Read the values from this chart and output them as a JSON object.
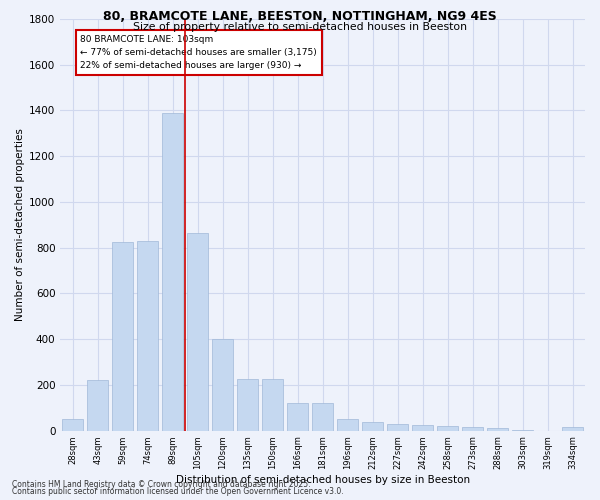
{
  "title1": "80, BRAMCOTE LANE, BEESTON, NOTTINGHAM, NG9 4ES",
  "title2": "Size of property relative to semi-detached houses in Beeston",
  "xlabel": "Distribution of semi-detached houses by size in Beeston",
  "ylabel": "Number of semi-detached properties",
  "bar_labels": [
    "28sqm",
    "43sqm",
    "59sqm",
    "74sqm",
    "89sqm",
    "105sqm",
    "120sqm",
    "135sqm",
    "150sqm",
    "166sqm",
    "181sqm",
    "196sqm",
    "212sqm",
    "227sqm",
    "242sqm",
    "258sqm",
    "273sqm",
    "288sqm",
    "303sqm",
    "319sqm",
    "334sqm"
  ],
  "bar_values": [
    50,
    220,
    825,
    830,
    1390,
    865,
    400,
    225,
    225,
    120,
    120,
    50,
    40,
    30,
    25,
    20,
    15,
    10,
    5,
    0,
    15
  ],
  "bar_color": "#c5d8f0",
  "bar_edge_color": "#a0b8d8",
  "annotation_title": "80 BRAMCOTE LANE: 103sqm",
  "annotation_line1": "← 77% of semi-detached houses are smaller (3,175)",
  "annotation_line2": "22% of semi-detached houses are larger (930) →",
  "annotation_color": "#cc0000",
  "ylim": [
    0,
    1800
  ],
  "yticks": [
    0,
    200,
    400,
    600,
    800,
    1000,
    1200,
    1400,
    1600,
    1800
  ],
  "footnote1": "Contains HM Land Registry data © Crown copyright and database right 2025.",
  "footnote2": "Contains public sector information licensed under the Open Government Licence v3.0.",
  "bg_color": "#eef2fb",
  "grid_color": "#d0d8ee"
}
